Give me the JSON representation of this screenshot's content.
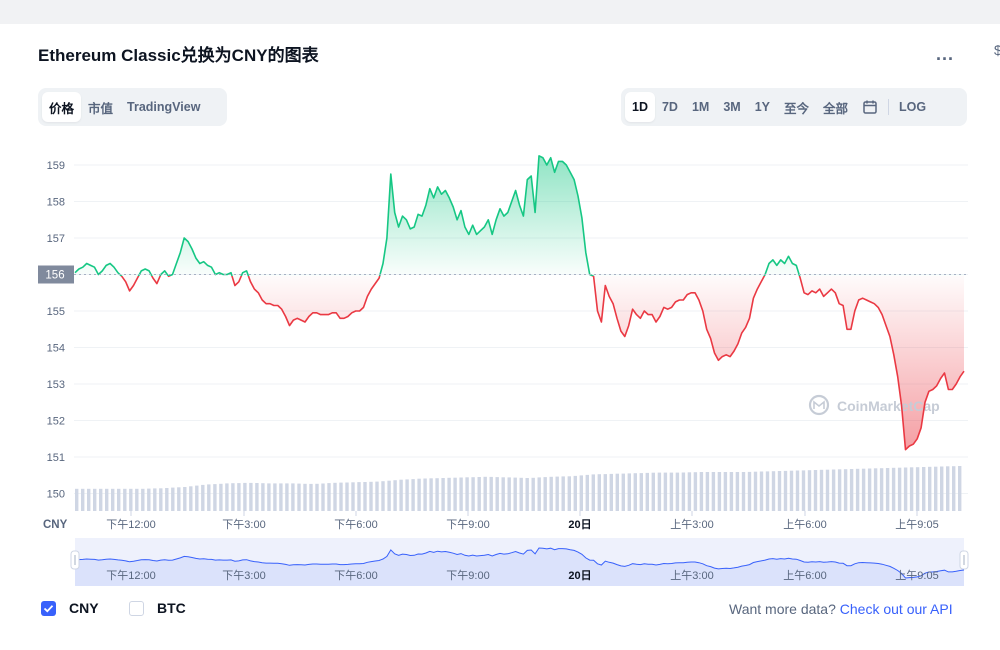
{
  "page": {
    "title": "Ethereum Classic兑换为CNY的图表",
    "more_label": "...",
    "edge_glyph": "$"
  },
  "view_tabs": [
    {
      "label": "价格",
      "active": true
    },
    {
      "label": "市值",
      "active": false
    },
    {
      "label": "TradingView",
      "active": false
    }
  ],
  "range_tabs": [
    {
      "label": "1D",
      "active": true
    },
    {
      "label": "7D",
      "active": false
    },
    {
      "label": "1M",
      "active": false
    },
    {
      "label": "3M",
      "active": false
    },
    {
      "label": "1Y",
      "active": false
    },
    {
      "label": "至今",
      "active": false
    },
    {
      "label": "全部",
      "active": false
    }
  ],
  "log_label": "LOG",
  "calendar_icon": "calendar-icon",
  "footer": {
    "cny_label": "CNY",
    "btc_label": "BTC",
    "cny_checked": true,
    "btc_checked": false,
    "api_prefix": "Want more data?",
    "api_link": "Check out our API"
  },
  "colors": {
    "up": "#16c784",
    "down": "#ea3943",
    "nav_line": "#3861fb",
    "accent": "#3861fb"
  },
  "chart_data": {
    "type": "line",
    "ylabel": "",
    "currency_label": "CNY",
    "yticks": [
      150,
      151,
      152,
      153,
      154,
      155,
      156,
      157,
      158,
      159
    ],
    "ylim": [
      149.5,
      159.5
    ],
    "baseline": 156,
    "baseline_label": "156",
    "xticks": [
      "下午12:00",
      "下午3:00",
      "下午6:00",
      "下午9:00",
      "20日",
      "上午3:00",
      "上午6:00",
      "上午9:05"
    ],
    "watermark": "CoinMarketCap",
    "grid": true,
    "series": [
      {
        "values": [
          156.05,
          156.15,
          156.2,
          156.3,
          156.25,
          156.2,
          156.0,
          156.1,
          156.25,
          156.3,
          156.2,
          156.05,
          155.95,
          155.8,
          155.55,
          155.7,
          155.9,
          156.1,
          156.15,
          156.1,
          155.9,
          155.75,
          156.0,
          156.1,
          155.95,
          156.0,
          156.3,
          156.6,
          157.0,
          156.9,
          156.7,
          156.45,
          156.3,
          156.35,
          156.25,
          156.2,
          156.0,
          156.05,
          156.0,
          156.0,
          156.05,
          155.7,
          155.8,
          156.05,
          156.1,
          155.8,
          155.6,
          155.5,
          155.3,
          155.2,
          155.2,
          155.15,
          155.15,
          155.05,
          154.85,
          154.6,
          154.75,
          154.8,
          154.75,
          154.7,
          154.85,
          154.95,
          154.95,
          154.9,
          154.9,
          154.9,
          154.95,
          154.95,
          154.8,
          154.8,
          154.85,
          154.95,
          155.0,
          155.0,
          155.1,
          155.4,
          155.6,
          155.75,
          155.9,
          156.3,
          157.0,
          158.75,
          157.7,
          157.3,
          157.6,
          157.5,
          157.25,
          157.3,
          157.65,
          157.6,
          157.9,
          158.35,
          158.1,
          158.4,
          158.2,
          158.3,
          158.1,
          157.85,
          157.5,
          157.75,
          157.3,
          157.1,
          157.35,
          157.1,
          157.2,
          157.3,
          157.5,
          157.1,
          157.5,
          157.8,
          157.6,
          157.7,
          158.0,
          158.3,
          157.9,
          157.6,
          158.6,
          158.7,
          157.7,
          159.25,
          159.2,
          159.0,
          159.2,
          158.8,
          159.1,
          159.1,
          159.0,
          158.8,
          158.6,
          158.15,
          157.55,
          156.6,
          156.0,
          155.95,
          155.0,
          154.7,
          155.7,
          155.4,
          155.2,
          154.8,
          154.45,
          154.3,
          154.6,
          155.05,
          154.9,
          154.8,
          155.0,
          154.9,
          154.9,
          154.7,
          154.85,
          155.1,
          155.05,
          155.1,
          155.25,
          155.3,
          155.3,
          155.45,
          155.5,
          155.5,
          155.3,
          155.0,
          154.5,
          154.25,
          153.85,
          153.65,
          153.75,
          153.8,
          153.75,
          153.9,
          154.1,
          154.4,
          154.55,
          154.8,
          155.35,
          155.6,
          155.8,
          156.0,
          156.3,
          156.4,
          156.25,
          156.4,
          156.3,
          156.5,
          156.3,
          156.25,
          155.9,
          155.5,
          155.45,
          155.55,
          155.5,
          155.6,
          155.4,
          155.5,
          155.6,
          155.5,
          155.2,
          155.15,
          154.5,
          154.5,
          155.0,
          155.3,
          155.35,
          155.3,
          155.25,
          155.2,
          155.1,
          154.9,
          154.6,
          154.3,
          153.8,
          153.2,
          152.4,
          151.2,
          151.3,
          151.35,
          151.5,
          151.8,
          152.5,
          152.8,
          152.85,
          152.95,
          153.15,
          153.3,
          152.85,
          152.85,
          153.0,
          153.2,
          153.35
        ]
      }
    ],
    "volume_relative": [
      0.37,
      0.37,
      0.37,
      0.37,
      0.38,
      0.4,
      0.44,
      0.46,
      0.47,
      0.46,
      0.46,
      0.45,
      0.47,
      0.48,
      0.49,
      0.52,
      0.54,
      0.55,
      0.56,
      0.57,
      0.56,
      0.55,
      0.57,
      0.58,
      0.61,
      0.62,
      0.63,
      0.64,
      0.64,
      0.65,
      0.65,
      0.65,
      0.66,
      0.67,
      0.68,
      0.69,
      0.7,
      0.71,
      0.72,
      0.73,
      0.74,
      0.75
    ]
  }
}
